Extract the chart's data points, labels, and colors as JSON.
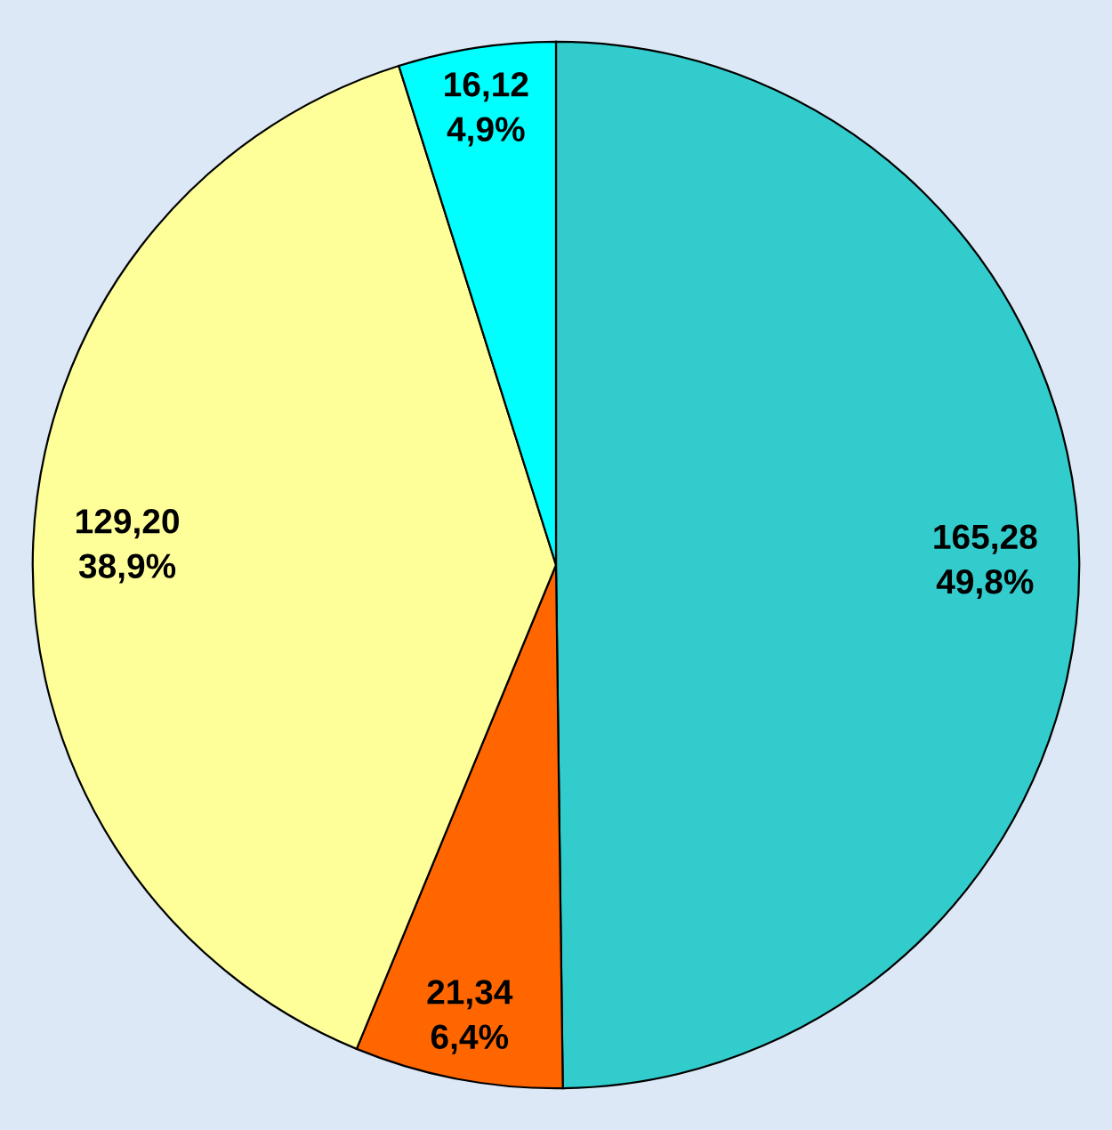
{
  "chart_data": {
    "type": "pie",
    "categories": [
      null,
      null,
      null,
      null
    ],
    "values": [
      165.28,
      21.34,
      129.2,
      16.12
    ],
    "colors": [
      "#33cccc",
      "#ff6600",
      "#ffff99",
      "#00ffff"
    ],
    "value_labels": [
      "165,28\n49,8%",
      "21,34\n6,4%",
      "129,20\n38,9%",
      "16,12\n4,9%"
    ]
  }
}
